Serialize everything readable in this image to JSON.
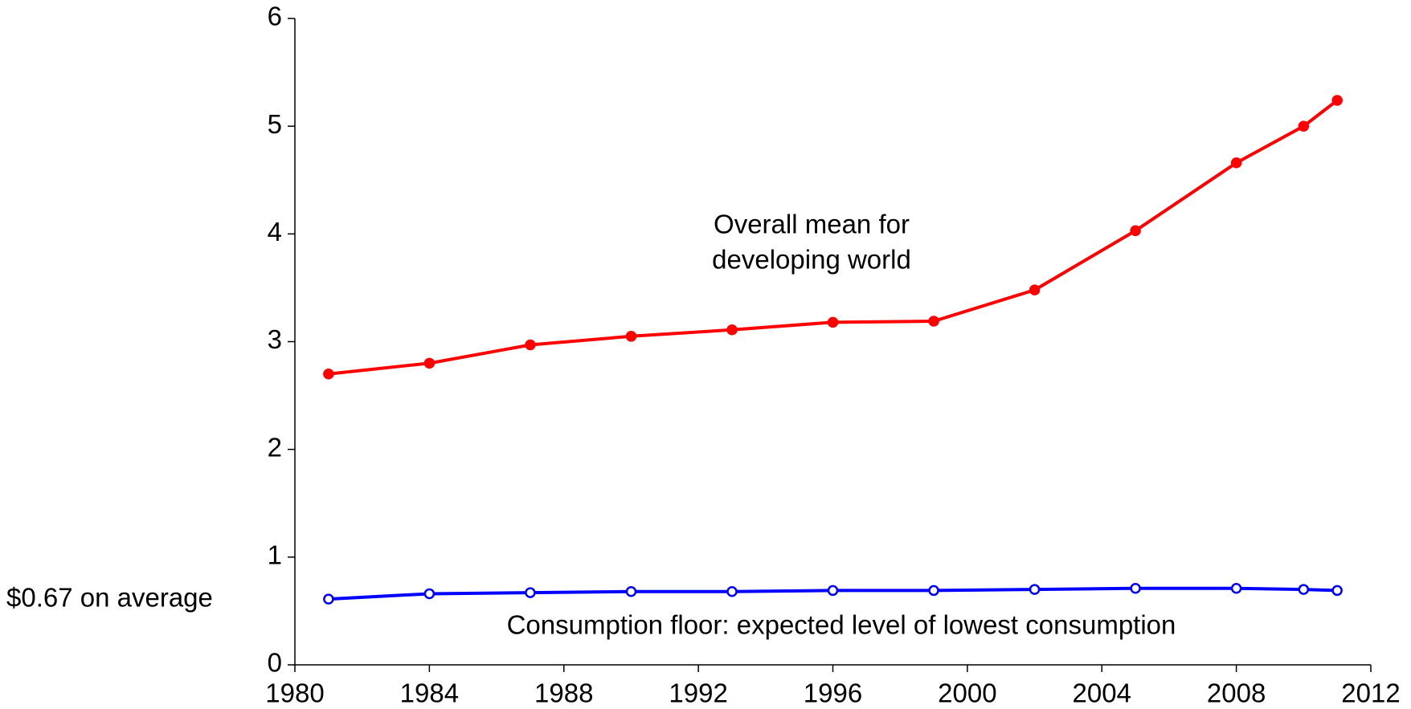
{
  "chart_data": {
    "type": "line",
    "x": [
      1981,
      1984,
      1987,
      1990,
      1993,
      1996,
      1999,
      2002,
      2005,
      2008,
      2010,
      2011
    ],
    "series": [
      {
        "name": "Overall mean for developing world",
        "color": "#ff0000",
        "marker_face": "#ff0000",
        "values": [
          2.7,
          2.8,
          2.97,
          3.05,
          3.11,
          3.18,
          3.19,
          3.48,
          4.03,
          4.66,
          5.0,
          5.24
        ]
      },
      {
        "name": "Consumption floor: expected level of lowest consumption",
        "color": "#0000ff",
        "marker_face": "#ffffff",
        "values": [
          0.61,
          0.66,
          0.67,
          0.68,
          0.68,
          0.69,
          0.69,
          0.7,
          0.71,
          0.71,
          0.7,
          0.69
        ]
      }
    ],
    "annotations": [
      {
        "lines": [
          "Overall mean for",
          "developing world"
        ]
      },
      {
        "lines": [
          "Consumption floor: expected level of lowest consumption"
        ]
      },
      {
        "lines": [
          "$0.67 on average"
        ]
      }
    ],
    "xlim": [
      1980,
      2012
    ],
    "xticks": [
      1980,
      1984,
      1988,
      1992,
      1996,
      2000,
      2004,
      2008,
      2012
    ],
    "ylim": [
      0,
      6
    ],
    "yticks": [
      0,
      1,
      2,
      3,
      4,
      5,
      6
    ]
  }
}
